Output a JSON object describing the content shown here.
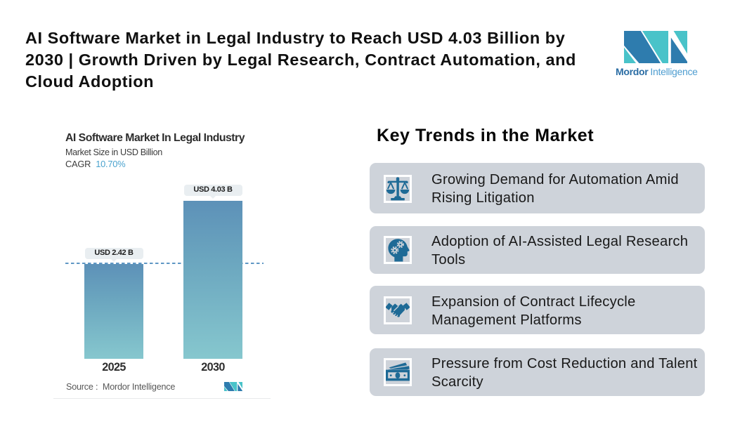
{
  "header": {
    "title_lines": [
      "AI Software Market in Legal Industry to Reach USD 4.03 Billion by",
      "2030 | Growth Driven by Legal Research, Contract Automation, and",
      "Cloud Adoption"
    ]
  },
  "brand": {
    "logo_icon": "mordor-intelligence-m-mark",
    "name_primary": "Mordor",
    "name_secondary": "Intelligence",
    "colors": {
      "blue": "#2e7cae",
      "teal": "#49c3c9"
    }
  },
  "chart": {
    "title": "AI Software Market In Legal Industry",
    "subtitle": "Market Size in USD Billion",
    "cagr_label": "CAGR",
    "cagr_value": "10.70%",
    "source_label": "Source :  Mordor Intelligence",
    "source_logo_icon": "mordor-intelligence-m-mark"
  },
  "chart_data": {
    "type": "bar",
    "title": "AI Software Market In Legal Industry",
    "subtitle": "Market Size in USD Billion",
    "cagr": "10.70%",
    "categories": [
      "2025",
      "2030"
    ],
    "values": [
      2.42,
      4.03
    ],
    "value_labels": [
      "USD 2.42 B",
      "USD 4.03 B"
    ],
    "unit": "USD Billion",
    "ylim": [
      0,
      4.4
    ],
    "grid": false,
    "reference_line": {
      "value": 2.42,
      "style": "dashed",
      "color": "#5f97c4"
    },
    "bar_gradient": [
      "#5d91b8",
      "#86c7ce"
    ],
    "source": "Mordor Intelligence"
  },
  "trends": {
    "heading": "Key Trends in the Market",
    "items": [
      {
        "icon": "scales-of-justice-icon",
        "text_lines": [
          "Growing Demand for Automation Amid",
          "Rising Litigation"
        ]
      },
      {
        "icon": "head-gears-icon",
        "text_lines": [
          "Adoption of AI-Assisted Legal Research",
          "Tools"
        ]
      },
      {
        "icon": "handshake-icon",
        "text_lines": [
          "Expansion of Contract Lifecycle",
          "Management Platforms"
        ]
      },
      {
        "icon": "money-banknote-icon",
        "text_lines": [
          "Pressure from Cost Reduction and Talent",
          "Scarcity"
        ]
      }
    ],
    "card_color": "#ced3da",
    "icon_color": "#1e6a96"
  }
}
